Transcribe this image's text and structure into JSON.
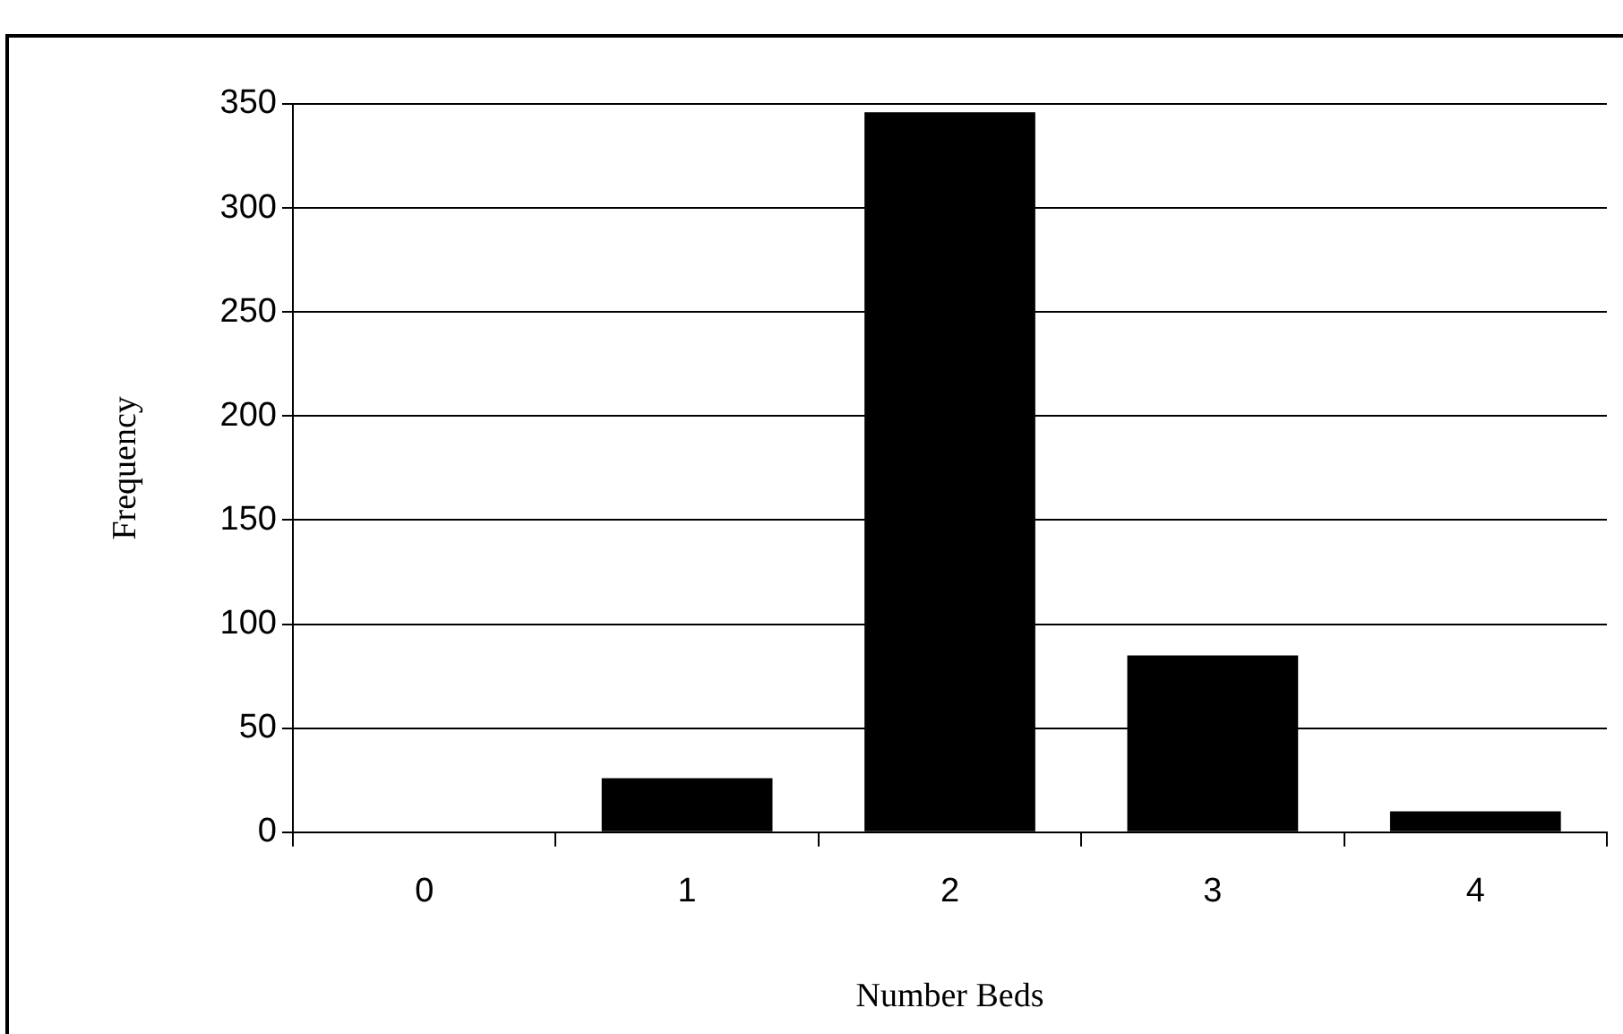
{
  "chart_data": {
    "type": "bar",
    "xlabel": "Number Beds",
    "ylabel": "Frequency",
    "categories": [
      "0",
      "1",
      "2",
      "3",
      "4"
    ],
    "values": [
      0,
      26,
      346,
      85,
      10
    ],
    "color": "#000000",
    "ylim": [
      0,
      350
    ],
    "yticks": [
      0,
      50,
      100,
      150,
      200,
      250,
      300,
      350
    ],
    "grid": "y"
  }
}
